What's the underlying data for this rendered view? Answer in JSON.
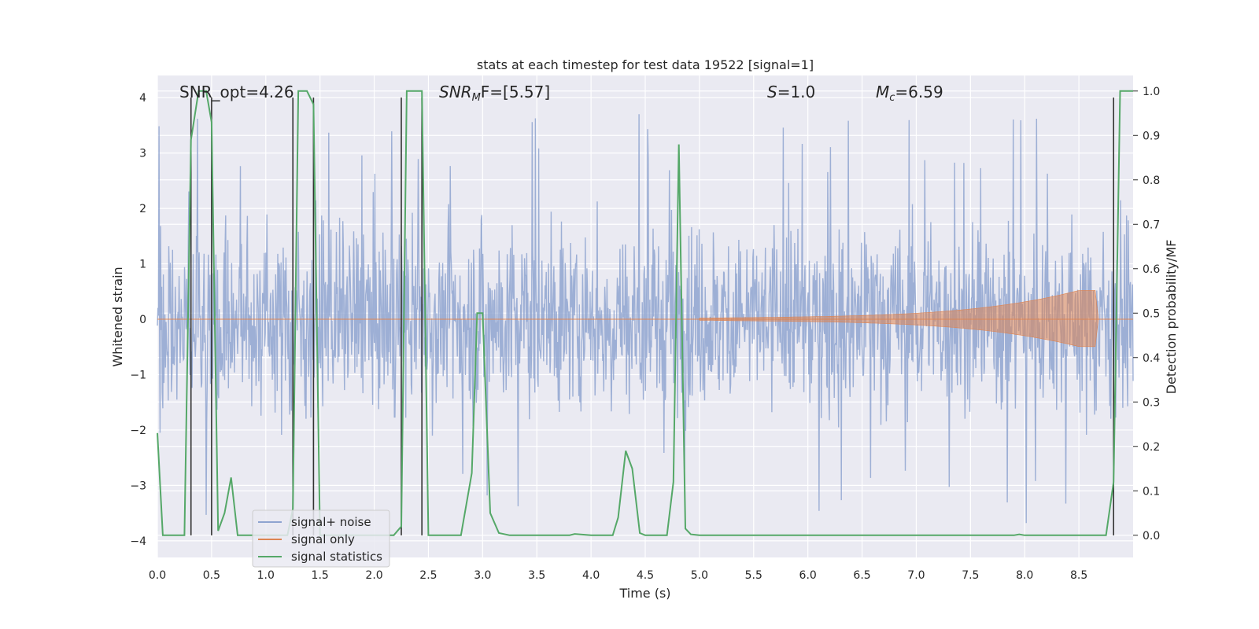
{
  "chart_data": {
    "type": "line",
    "title": "stats at each timestep for test data 19522 [signal=1]",
    "xlabel": "Time (s)",
    "ylabel_left": "Whitened strain",
    "ylabel_right": "Detection probability/MF",
    "xlim": [
      0,
      9.0
    ],
    "ylim_left": [
      -4.3,
      4.4
    ],
    "ylim_right": [
      -0.05,
      1.035
    ],
    "x_ticks": [
      "0.0",
      "0.5",
      "1.0",
      "1.5",
      "2.0",
      "2.5",
      "3.0",
      "3.5",
      "4.0",
      "4.5",
      "5.0",
      "5.5",
      "6.0",
      "6.5",
      "7.0",
      "7.5",
      "8.0",
      "8.5"
    ],
    "y_ticks_left": [
      "−4",
      "−3",
      "−2",
      "−1",
      "0",
      "1",
      "2",
      "3",
      "4"
    ],
    "y_ticks_right": [
      "0.0",
      "0.1",
      "0.2",
      "0.3",
      "0.4",
      "0.5",
      "0.6",
      "0.7",
      "0.8",
      "0.9",
      "1.0"
    ],
    "grid": true,
    "legend_position": "lower-left",
    "annotations": {
      "snr_opt": "SNR_opt=4.26",
      "snr_mf": "SNR",
      "snr_mf_sub": "M",
      "snr_mf_rest": "F=[5.57]",
      "s_label": "S",
      "s_value": "=1.0",
      "mc_label": "M",
      "mc_sub": "c",
      "mc_value": "=6.59"
    },
    "series": [
      {
        "name": "signal+ noise",
        "color": "#8fa4d0",
        "axis": "left",
        "description_values": "noise band approx ±1.5 strain with spikes up to ±3.5"
      },
      {
        "name": "signal only",
        "color": "#dd8452",
        "axis": "left",
        "chirp": {
          "start_x": 5.0,
          "peak_x": 8.65,
          "end_x": 8.68,
          "peak_amplitude": 0.52
        }
      },
      {
        "name": "signal statistics",
        "color": "#55a868",
        "axis": "right",
        "x": [
          0.0,
          0.05,
          0.25,
          0.31,
          0.38,
          0.45,
          0.5,
          0.56,
          0.62,
          0.68,
          0.74,
          1.0,
          1.2,
          1.25,
          1.3,
          1.38,
          1.44,
          1.5,
          1.6,
          2.0,
          2.18,
          2.25,
          2.3,
          2.4,
          2.44,
          2.5,
          2.6,
          2.8,
          2.9,
          2.95,
          3.0,
          3.07,
          3.15,
          3.25,
          3.5,
          3.8,
          3.85,
          4.0,
          4.2,
          4.25,
          4.32,
          4.38,
          4.45,
          4.5,
          4.7,
          4.76,
          4.81,
          4.87,
          4.92,
          5.0,
          6.0,
          7.0,
          7.9,
          7.95,
          8.0,
          8.2,
          8.75,
          8.82,
          8.88,
          8.95,
          9.0
        ],
        "y": [
          0.23,
          0.0,
          0.0,
          0.89,
          1.0,
          1.0,
          0.93,
          0.01,
          0.05,
          0.13,
          0.0,
          0.0,
          0.0,
          0.06,
          1.0,
          1.0,
          0.97,
          0.0,
          0.0,
          0.0,
          0.0,
          0.02,
          1.0,
          1.0,
          1.0,
          0.0,
          0.0,
          0.0,
          0.14,
          0.5,
          0.5,
          0.05,
          0.005,
          0.0,
          0.0,
          0.0,
          0.003,
          0.0,
          0.0,
          0.04,
          0.19,
          0.15,
          0.005,
          0.0,
          0.0,
          0.12,
          0.88,
          0.015,
          0.002,
          0.0,
          0.0,
          0.0,
          0.0,
          0.002,
          0.0,
          0.0,
          0.0,
          0.12,
          1.0,
          1.0,
          1.0
        ]
      },
      {
        "name": "",
        "color": "#333333",
        "axis": "left",
        "type": "vlines",
        "x": [
          0.31,
          0.5,
          1.25,
          1.44,
          2.25,
          2.44,
          8.82
        ],
        "ymin": -3.9,
        "ymax": 4.0
      }
    ]
  }
}
